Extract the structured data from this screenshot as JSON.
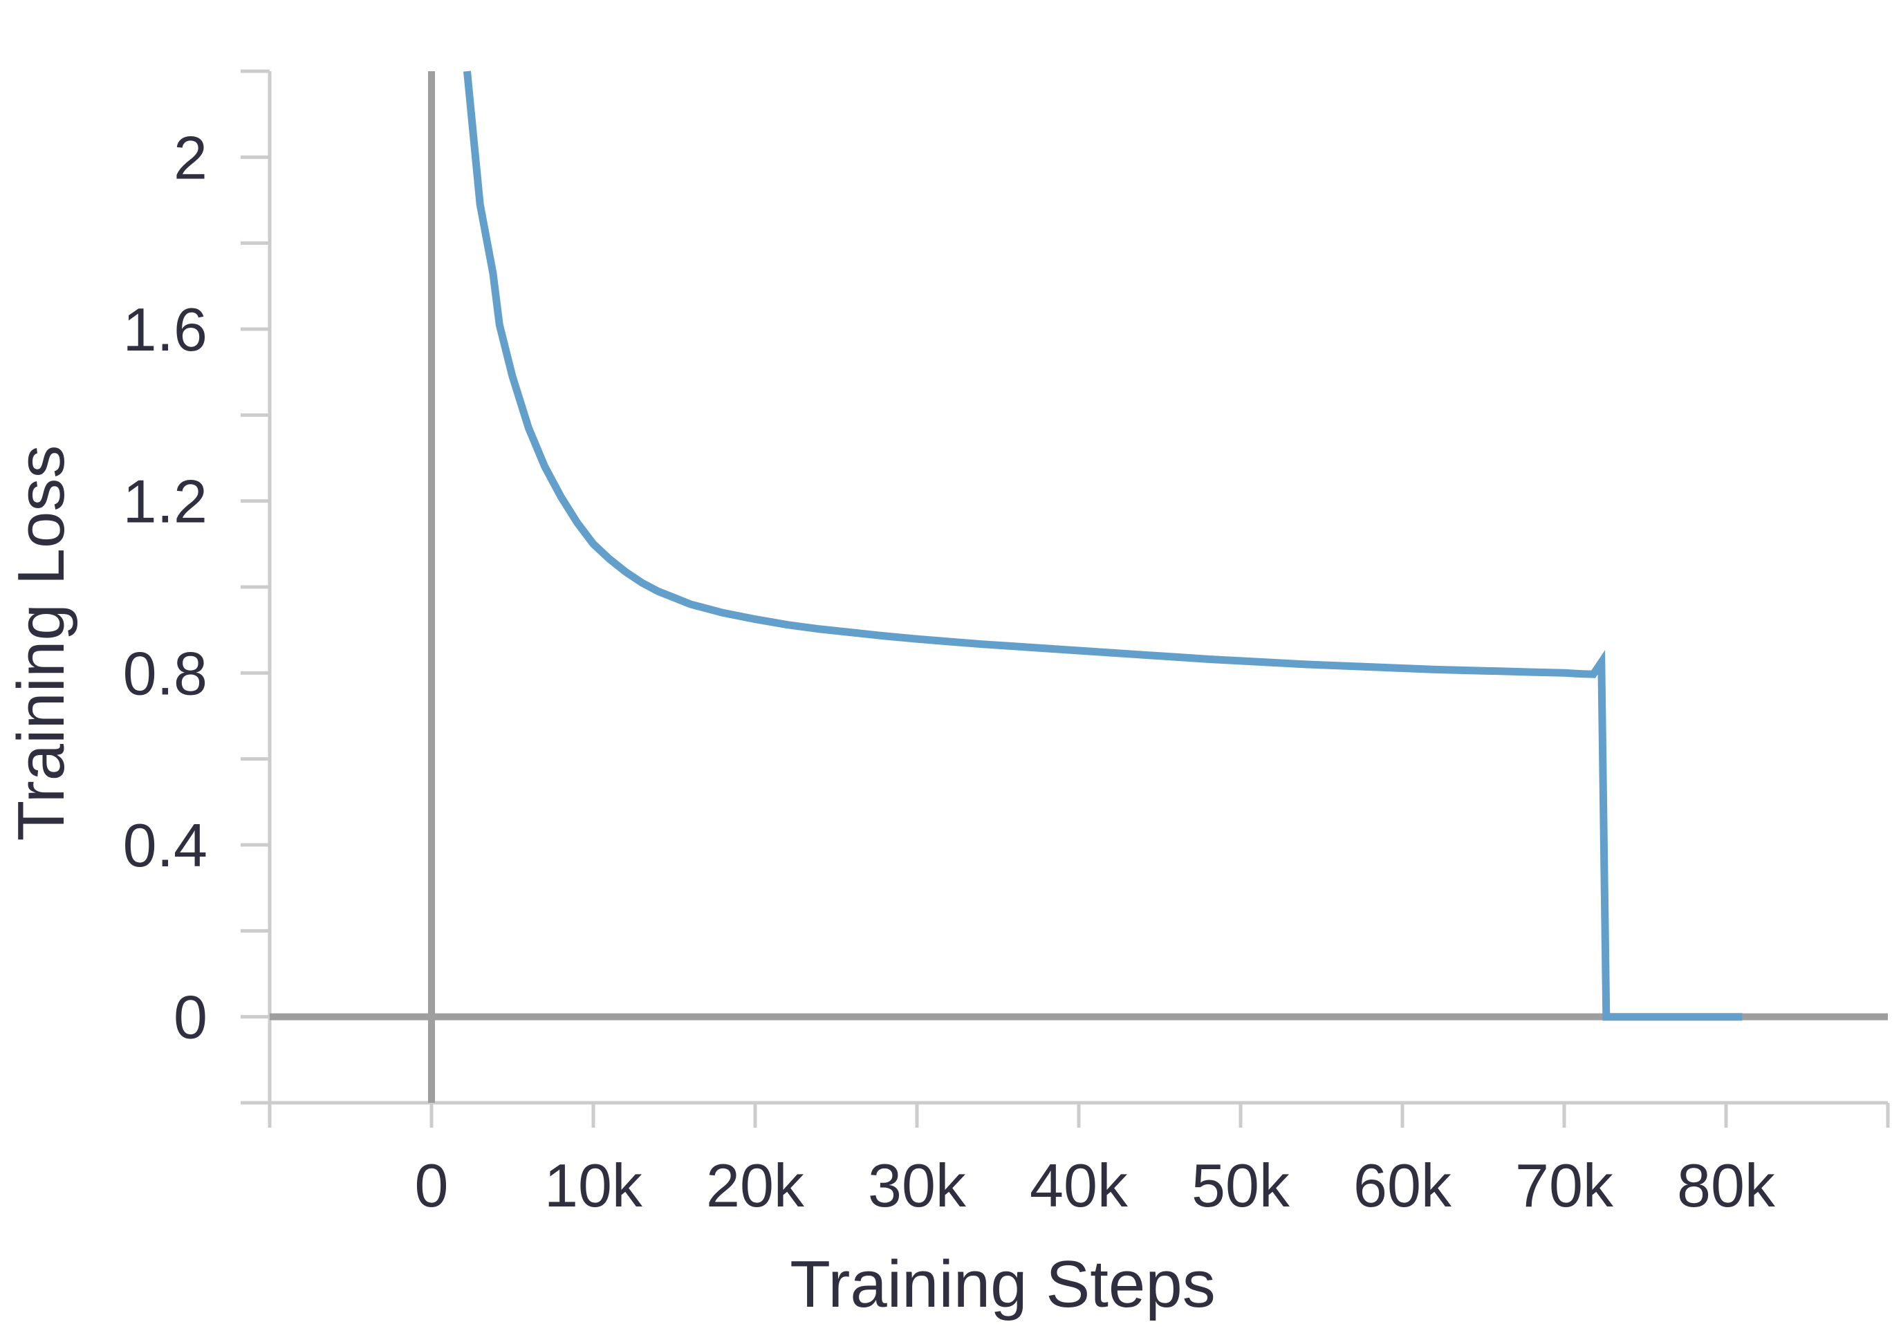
{
  "chart_data": {
    "type": "line",
    "xlabel": "Training Steps",
    "ylabel": "Training Loss",
    "xlim": [
      -10000,
      90000
    ],
    "ylim": [
      -0.2,
      2.2
    ],
    "x_ticks": [
      {
        "value": 0,
        "label": "0"
      },
      {
        "value": 10000,
        "label": "10k"
      },
      {
        "value": 20000,
        "label": "20k"
      },
      {
        "value": 30000,
        "label": "30k"
      },
      {
        "value": 40000,
        "label": "40k"
      },
      {
        "value": 50000,
        "label": "50k"
      },
      {
        "value": 60000,
        "label": "60k"
      },
      {
        "value": 70000,
        "label": "70k"
      },
      {
        "value": 80000,
        "label": "80k"
      }
    ],
    "x_minor_ticks": [
      -10000,
      0,
      10000,
      20000,
      30000,
      40000,
      50000,
      60000,
      70000,
      80000,
      90000
    ],
    "y_ticks": [
      {
        "value": 0,
        "label": "0"
      },
      {
        "value": 0.4,
        "label": "0.4"
      },
      {
        "value": 0.8,
        "label": "0.8"
      },
      {
        "value": 1.2,
        "label": "1.2"
      },
      {
        "value": 1.6,
        "label": "1.6"
      },
      {
        "value": 2,
        "label": "2"
      }
    ],
    "y_minor_ticks": [
      -0.2,
      0,
      0.2,
      0.4,
      0.6,
      0.8,
      1.0,
      1.2,
      1.4,
      1.6,
      1.8,
      2.0,
      2.2
    ],
    "reference_lines": {
      "x": 0,
      "y": 0,
      "color": "#9e9e9e"
    },
    "grid": false,
    "series": [
      {
        "color": "#62a0cb",
        "x": [
          2200,
          3000,
          3800,
          4200,
          5000,
          6000,
          7000,
          8000,
          9000,
          10000,
          11000,
          12000,
          13000,
          14000,
          15000,
          16000,
          17000,
          18000,
          20000,
          22000,
          24000,
          26000,
          28000,
          30000,
          32000,
          34000,
          36000,
          38000,
          40000,
          42000,
          44000,
          46000,
          48000,
          50000,
          52000,
          54000,
          56000,
          58000,
          60000,
          62000,
          64000,
          66000,
          68000,
          70000,
          71000,
          71800,
          72300,
          72600,
          81000
        ],
        "y": [
          2.2,
          1.89,
          1.73,
          1.61,
          1.49,
          1.37,
          1.28,
          1.21,
          1.15,
          1.1,
          1.065,
          1.035,
          1.01,
          0.99,
          0.975,
          0.96,
          0.95,
          0.94,
          0.925,
          0.912,
          0.902,
          0.894,
          0.886,
          0.879,
          0.873,
          0.867,
          0.862,
          0.857,
          0.852,
          0.847,
          0.842,
          0.837,
          0.832,
          0.828,
          0.824,
          0.82,
          0.817,
          0.814,
          0.811,
          0.808,
          0.806,
          0.804,
          0.802,
          0.8,
          0.798,
          0.797,
          0.825,
          0.0,
          0.0
        ]
      }
    ]
  }
}
